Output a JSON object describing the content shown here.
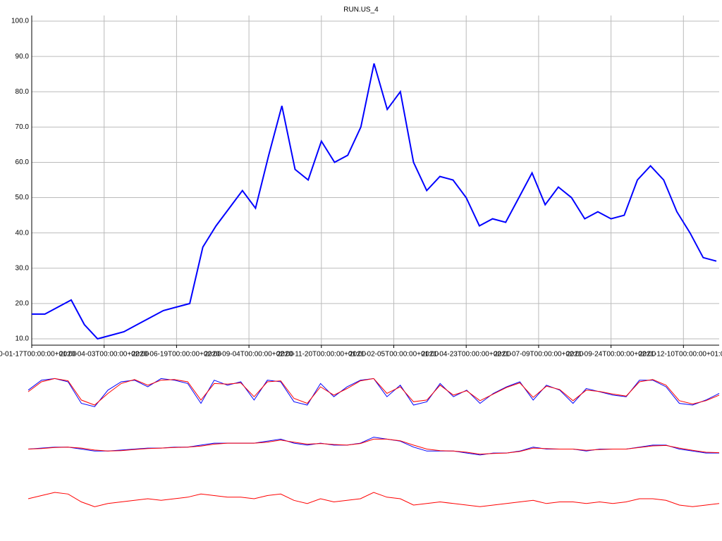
{
  "chart_data": [
    {
      "type": "line",
      "title": "RUN.US_4",
      "x": [
        "2020-01-17",
        "2020-01-31",
        "2020-02-14",
        "2020-02-28",
        "2020-03-13",
        "2020-03-27",
        "2020-04-10",
        "2020-04-24",
        "2020-05-08",
        "2020-05-22",
        "2020-06-05",
        "2020-06-19",
        "2020-07-03",
        "2020-07-17",
        "2020-07-31",
        "2020-08-14",
        "2020-08-28",
        "2020-09-11",
        "2020-09-25",
        "2020-10-09",
        "2020-10-23",
        "2020-11-06",
        "2020-11-20",
        "2020-12-04",
        "2020-12-18",
        "2021-01-01",
        "2021-01-15",
        "2021-01-29",
        "2021-02-12",
        "2021-02-26",
        "2021-03-12",
        "2021-03-26",
        "2021-04-09",
        "2021-04-23",
        "2021-05-07",
        "2021-05-21",
        "2021-06-04",
        "2021-06-18",
        "2021-07-02",
        "2021-07-16",
        "2021-07-30",
        "2021-08-13",
        "2021-08-27",
        "2021-09-10",
        "2021-09-24",
        "2021-10-08",
        "2021-10-22",
        "2021-11-05",
        "2021-11-19",
        "2021-12-03",
        "2021-12-17",
        "2021-12-31",
        "2022-01-14"
      ],
      "series": [
        {
          "color": "#0000ff",
          "values": [
            17,
            17,
            19,
            21,
            14,
            10,
            11,
            12,
            14,
            16,
            18,
            19,
            20,
            36,
            42,
            47,
            52,
            47,
            62,
            76,
            58,
            55,
            66,
            60,
            62,
            70,
            88,
            75,
            80,
            60,
            52,
            56,
            55,
            50,
            42,
            44,
            43,
            50,
            57,
            48,
            53,
            50,
            44,
            46,
            44,
            45,
            55,
            59,
            55,
            46,
            40,
            33,
            32
          ]
        }
      ],
      "xlim": [
        "2020-01-17",
        "2022-01-17"
      ],
      "xticks": [
        {
          "value": "2020-01-17",
          "label": "2020-01-17T00:00:00+01:00"
        },
        {
          "value": "2020-04-03",
          "label": "2020-04-03T00:00:00+02:00"
        },
        {
          "value": "2020-06-19",
          "label": "2020-06-19T00:00:00+02:00"
        },
        {
          "value": "2020-09-04",
          "label": "2020-09-04T00:00:00+02:00"
        },
        {
          "value": "2020-11-20",
          "label": "2020-11-20T00:00:00+01:00"
        },
        {
          "value": "2021-02-05",
          "label": "2021-02-05T00:00:00+01:00"
        },
        {
          "value": "2021-04-23",
          "label": "2021-04-23T00:00:00+02:00"
        },
        {
          "value": "2021-07-09",
          "label": "2021-07-09T00:00:00+02:00"
        },
        {
          "value": "2021-09-24",
          "label": "2021-09-24T00:00:00+02:00"
        },
        {
          "value": "2021-12-10",
          "label": "2021-12-10T00:00:00+01:00"
        }
      ],
      "ylim": [
        8.2,
        101.6
      ],
      "yticks": [
        {
          "value": 10,
          "label": "10.0"
        },
        {
          "value": 20,
          "label": "20.0"
        },
        {
          "value": 30,
          "label": "30.0"
        },
        {
          "value": 40,
          "label": "40.0"
        },
        {
          "value": 50,
          "label": "50.0"
        },
        {
          "value": 60,
          "label": "60.0"
        },
        {
          "value": 70,
          "label": "70.0"
        },
        {
          "value": 80,
          "label": "80.0"
        },
        {
          "value": 90,
          "label": "90.0"
        },
        {
          "value": 100,
          "label": "100.0"
        }
      ],
      "grid": true
    },
    {
      "type": "line",
      "ylim": [
        0,
        100
      ],
      "series": [
        {
          "color": "#0000ff",
          "values": [
            60,
            90,
            95,
            85,
            20,
            10,
            60,
            85,
            90,
            70,
            95,
            90,
            80,
            20,
            90,
            75,
            85,
            30,
            90,
            85,
            25,
            15,
            80,
            40,
            70,
            90,
            95,
            40,
            75,
            15,
            25,
            80,
            40,
            60,
            20,
            50,
            70,
            85,
            30,
            75,
            60,
            20,
            65,
            55,
            45,
            40,
            90,
            90,
            70,
            20,
            15,
            30,
            50
          ]
        },
        {
          "color": "#ff0000",
          "values": [
            55,
            85,
            95,
            88,
            30,
            15,
            50,
            80,
            92,
            75,
            90,
            92,
            85,
            30,
            80,
            78,
            82,
            40,
            85,
            88,
            35,
            20,
            70,
            45,
            65,
            88,
            95,
            50,
            70,
            25,
            30,
            75,
            45,
            58,
            28,
            48,
            68,
            82,
            38,
            72,
            62,
            28,
            60,
            56,
            48,
            42,
            85,
            92,
            75,
            28,
            18,
            28,
            45
          ]
        }
      ]
    },
    {
      "type": "line",
      "ylim": [
        -8,
        8
      ],
      "series": [
        {
          "color": "#0000ff",
          "values": [
            0,
            0.5,
            1,
            1,
            0,
            -1,
            -1,
            -0.5,
            0,
            0.5,
            0.5,
            1,
            1,
            2,
            3,
            3,
            3,
            3,
            4,
            5,
            3,
            2,
            3,
            2,
            2,
            3,
            6,
            5,
            4,
            1,
            -1,
            -1,
            -1,
            -2,
            -3,
            -2,
            -2,
            -1,
            1,
            0,
            0,
            0,
            -1,
            0,
            0,
            0,
            1,
            2,
            2,
            0,
            -1,
            -2,
            -2
          ]
        },
        {
          "color": "#ff0000",
          "values": [
            0,
            0.3,
            0.8,
            1,
            0.5,
            -0.5,
            -1,
            -0.8,
            -0.2,
            0.3,
            0.5,
            0.8,
            1,
            1.5,
            2.5,
            3,
            3,
            3,
            3.5,
            4.5,
            3.5,
            2.5,
            2.8,
            2.3,
            2,
            2.8,
            5,
            5,
            4.2,
            2,
            0,
            -0.8,
            -1,
            -1.6,
            -2.6,
            -2.2,
            -2,
            -1.2,
            0.5,
            0.2,
            0,
            0,
            -0.6,
            -0.2,
            0,
            0,
            0.8,
            1.6,
            1.8,
            0.5,
            -0.6,
            -1.6,
            -1.8
          ]
        }
      ]
    },
    {
      "type": "line",
      "ylim": [
        -10,
        10
      ],
      "series": [
        {
          "color": "#ff0000",
          "values": [
            2,
            4,
            6,
            5,
            0,
            -3,
            -1,
            0,
            1,
            2,
            1,
            2,
            3,
            5,
            4,
            3,
            3,
            2,
            4,
            5,
            1,
            -1,
            2,
            0,
            1,
            2,
            6,
            3,
            2,
            -2,
            -1,
            0,
            -1,
            -2,
            -3,
            -2,
            -1,
            0,
            1,
            -1,
            0,
            0,
            -1,
            0,
            -1,
            0,
            2,
            2,
            1,
            -2,
            -3,
            -2,
            -1
          ]
        }
      ]
    }
  ]
}
